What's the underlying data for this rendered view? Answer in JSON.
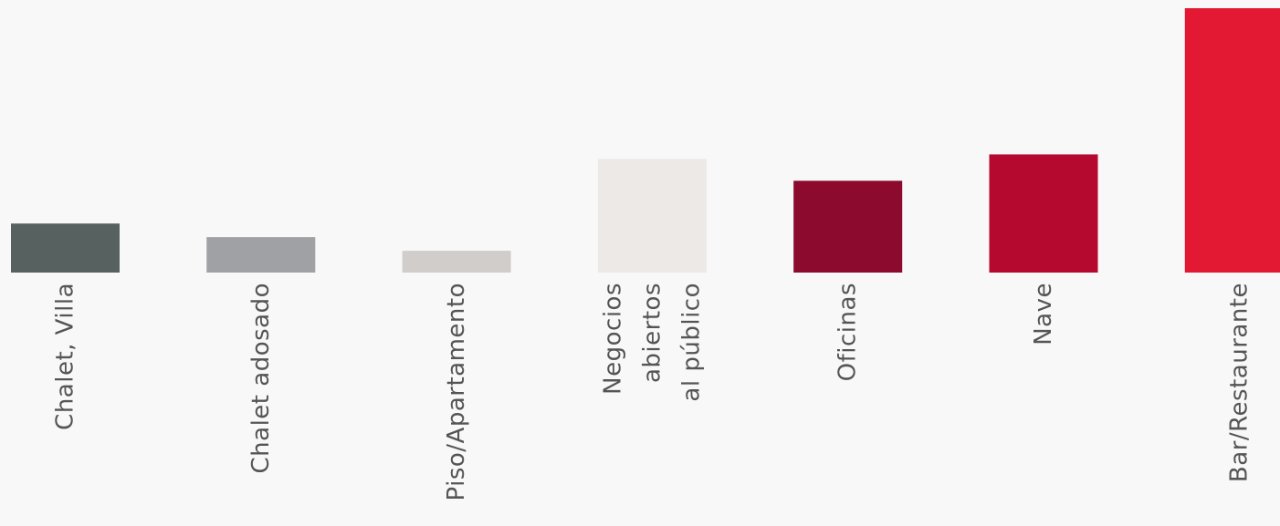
{
  "chart_data": {
    "type": "bar",
    "title": "",
    "xlabel": "",
    "ylabel": "",
    "categories": [
      [
        "Chalet, Villa"
      ],
      [
        "Chalet adosado"
      ],
      [
        "Piso/Apartamento"
      ],
      [
        "Negocios",
        "abiertos",
        "al público"
      ],
      [
        "Oficinas"
      ],
      [
        "Nave"
      ],
      [
        "Bar/Restaurante"
      ]
    ],
    "values": [
      54,
      39,
      24,
      125,
      101,
      130,
      291
    ],
    "colors": [
      "#566160",
      "#9fa1a4",
      "#d1cdcb",
      "#ede9e6",
      "#8b0a2e",
      "#b5092f",
      "#e31832"
    ],
    "ylim": [
      0,
      300
    ],
    "grid": false,
    "legend": "none"
  }
}
